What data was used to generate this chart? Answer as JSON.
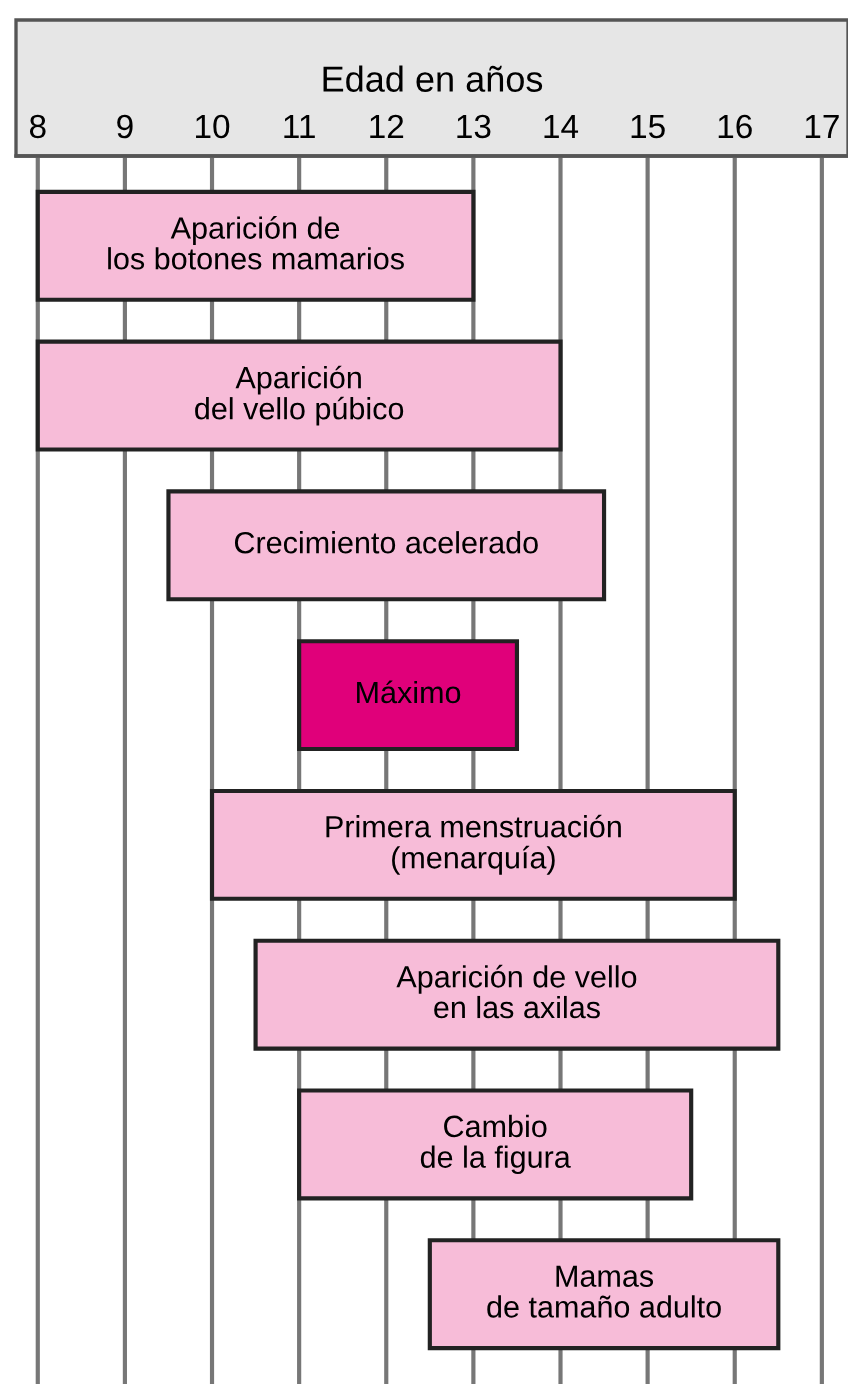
{
  "chart_data": {
    "type": "bar",
    "orientation": "horizontal",
    "xlabel": "Edad en años",
    "categories": [
      "Aparición de\nlos botones mamarios",
      "Aparición\ndel vello púbico",
      "Crecimiento acelerado",
      "Máximo",
      "Primera menstruación\n(menarquía)",
      "Aparición de vello\nen las axilas",
      "Cambio\nde la figura",
      "Mamas\nde tamaño adulto"
    ],
    "base": [
      8,
      8,
      9.5,
      11,
      10,
      10.5,
      11,
      12.5
    ],
    "values": [
      5,
      6,
      5,
      2.5,
      6,
      6,
      4.5,
      4
    ],
    "colors": [
      "#f7bcd8",
      "#f7bcd8",
      "#f7bcd8",
      "#e0007a",
      "#f7bcd8",
      "#f7bcd8",
      "#f7bcd8",
      "#f7bcd8"
    ],
    "xlim": [
      7.75,
      17.3
    ],
    "xticks": [
      8,
      9,
      10,
      11,
      12,
      13,
      14,
      15,
      16,
      17
    ],
    "grid": "x",
    "tick_labels": "x"
  }
}
